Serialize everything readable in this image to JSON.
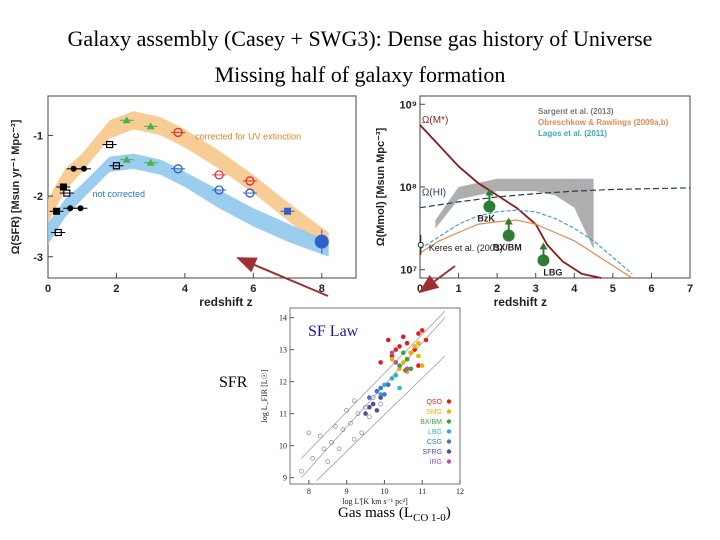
{
  "slide": {
    "title_line1": "Galaxy assembly (Casey + SWG3): Dense gas history of Universe",
    "title_line2": "Missing half of galaxy formation",
    "sf_law_label": "SF Law",
    "sfr_label": "SFR",
    "gas_mass_label": "Gas mass (L",
    "gas_mass_sub": "CO 1-0",
    "gas_mass_close": ")"
  },
  "chart_data": [
    {
      "type": "scatter",
      "xlabel": "redshift z",
      "ylabel": "Ω(SFR) [Msun yr⁻¹ Mpc⁻³]",
      "xlim": [
        0,
        9
      ],
      "ylim": [
        -3.35,
        -0.35
      ],
      "xticks": [
        "0",
        "2",
        "4",
        "6",
        "8"
      ],
      "yticks": [
        "-1",
        "-2",
        "-3"
      ],
      "annotations": [
        "corrected for UV extinction",
        "not corrected"
      ],
      "colors": {
        "corrected_band": "#f6c88a",
        "uncorrected_band": "#8fc8ec",
        "red": "#e03030",
        "green": "#4cb050",
        "blue": "#2f5fd0"
      },
      "bands": [
        {
          "name": "corrected for UV extinction",
          "x": [
            0.0,
            0.5,
            1.0,
            1.8,
            2.5,
            3.3,
            4.0,
            5.0,
            6.0,
            7.0,
            8.2
          ],
          "lower": [
            -2.45,
            -1.9,
            -1.6,
            -1.05,
            -0.9,
            -1.0,
            -1.2,
            -1.55,
            -1.95,
            -2.4,
            -2.95
          ],
          "upper": [
            -2.05,
            -1.55,
            -1.3,
            -0.75,
            -0.6,
            -0.7,
            -0.9,
            -1.25,
            -1.65,
            -2.1,
            -2.6
          ]
        },
        {
          "name": "not corrected",
          "x": [
            0.0,
            0.5,
            1.0,
            1.8,
            2.5,
            3.3,
            4.0,
            5.0,
            6.0,
            7.0,
            8.2
          ],
          "lower": [
            -2.8,
            -2.35,
            -2.05,
            -1.6,
            -1.55,
            -1.65,
            -1.85,
            -2.2,
            -2.5,
            -2.75,
            -3.0
          ],
          "upper": [
            -2.45,
            -2.05,
            -1.8,
            -1.35,
            -1.3,
            -1.4,
            -1.6,
            -1.9,
            -2.2,
            -2.45,
            -2.75
          ]
        }
      ],
      "series": [
        {
          "color": "#000000",
          "marker": "open-square",
          "x": [
            0.3,
            0.55,
            1.8,
            2.0
          ],
          "y": [
            -2.6,
            -1.95,
            -1.15,
            -1.5
          ]
        },
        {
          "color": "#000000",
          "marker": "filled-circle",
          "x": [
            0.75,
            1.05,
            0.65,
            0.95
          ],
          "y": [
            -1.55,
            -1.55,
            -2.2,
            -2.2
          ]
        },
        {
          "color": "#000000",
          "marker": "filled-square",
          "x": [
            0.25,
            0.45
          ],
          "y": [
            -2.25,
            -1.85
          ]
        },
        {
          "color": "#4cb050",
          "marker": "triangle",
          "x": [
            2.3,
            3.0,
            2.3,
            3.0
          ],
          "y": [
            -0.75,
            -0.85,
            -1.4,
            -1.45
          ]
        },
        {
          "color": "#e03030",
          "marker": "open-circle",
          "x": [
            3.8,
            5.0,
            5.9
          ],
          "y": [
            -0.95,
            -1.65,
            -1.75
          ]
        },
        {
          "color": "#2f5fd0",
          "marker": "open-circle",
          "x": [
            3.8,
            5.0,
            5.9
          ],
          "y": [
            -1.55,
            -1.9,
            -1.95
          ]
        },
        {
          "color": "#2f5fd0",
          "marker": "filled-square",
          "x": [
            7.0
          ],
          "y": [
            -2.25
          ]
        },
        {
          "color": "#2f5fd0",
          "marker": "big-filled-circle",
          "x": [
            8.0
          ],
          "y": [
            -2.75
          ]
        }
      ]
    },
    {
      "type": "line",
      "xlabel": "redshift z",
      "ylabel": "Ω(Mmol) [Msun Mpc⁻³]",
      "xlim": [
        0,
        7
      ],
      "ylim": [
        6.9,
        9.1
      ],
      "xticks": [
        "0",
        "1",
        "2",
        "3",
        "4",
        "5",
        "6",
        "7"
      ],
      "yticks": [
        "10⁹",
        "10⁸",
        "10⁷"
      ],
      "annotations": [
        "Ω(M*)",
        "Ω(HI)",
        "BzK",
        "BX/BM",
        "LBG",
        "Keres et al. (2003)"
      ],
      "legend": {
        "placement": "top-right",
        "entries": [
          "Sargent et al. (2013)",
          "Obreschkow & Rawlings (2009a,b)",
          "Lagos et al. (2011)"
        ]
      },
      "colors": {
        "stellar": "#8b1a1a",
        "hi": "#1c3f5e",
        "obreschkow": "#e08a50",
        "lagos": "#3ba7c0",
        "sargent": "#a0a0a0",
        "marker": "#2e7d32"
      },
      "sargent_band": {
        "x": [
          0.4,
          1.0,
          1.5,
          2.0,
          2.5,
          3.0,
          3.5,
          4.0,
          4.5
        ],
        "lower": [
          7.5,
          7.85,
          7.9,
          7.95,
          7.95,
          7.95,
          7.9,
          7.75,
          7.25
        ],
        "upper": [
          7.6,
          8.0,
          8.05,
          8.1,
          8.1,
          8.1,
          8.1,
          8.1,
          8.1
        ]
      },
      "series": [
        {
          "name": "Ω(M*)",
          "x": [
            0,
            0.5,
            1.0,
            1.5,
            2.0,
            2.5,
            3.0,
            3.3,
            3.7,
            4.2,
            4.7
          ],
          "y": [
            8.75,
            8.5,
            8.25,
            8.05,
            7.9,
            7.75,
            7.55,
            7.3,
            7.1,
            6.95,
            6.9
          ]
        },
        {
          "name": "Ω(HI)",
          "x": [
            0,
            1,
            2,
            3,
            4,
            5,
            6,
            7
          ],
          "y": [
            7.75,
            7.82,
            7.88,
            7.92,
            7.95,
            7.97,
            7.98,
            7.99
          ]
        },
        {
          "name": "Obreschkow & Rawlings (2009a,b)",
          "x": [
            0,
            0.5,
            1.0,
            1.5,
            2.0,
            2.5,
            3.0,
            3.5,
            4.0,
            4.5,
            5.0,
            5.5
          ],
          "y": [
            7.2,
            7.35,
            7.45,
            7.55,
            7.58,
            7.6,
            7.55,
            7.45,
            7.35,
            7.2,
            7.05,
            6.9
          ]
        },
        {
          "name": "Lagos et al. (2011)",
          "x": [
            0,
            0.5,
            1.0,
            1.5,
            2.0,
            2.5,
            3.0,
            3.5,
            4.0,
            4.5,
            5.0,
            5.5
          ],
          "y": [
            7.25,
            7.4,
            7.55,
            7.65,
            7.7,
            7.72,
            7.7,
            7.62,
            7.5,
            7.35,
            7.15,
            6.95
          ]
        }
      ],
      "points": [
        {
          "label": "BzK",
          "x": 1.8,
          "y": 7.8
        },
        {
          "label": "BX/BM",
          "x": 2.3,
          "y": 7.45
        },
        {
          "label": "LBG",
          "x": 3.2,
          "y": 7.15
        },
        {
          "label": "Keres et al. (2003)",
          "x": 0.02,
          "y": 7.3
        }
      ]
    },
    {
      "type": "scatter",
      "xlabel": "log L'[K km s⁻¹ pc²]",
      "ylabel": "log L_FIR [L☉]",
      "xlim": [
        7.5,
        12
      ],
      "ylim": [
        8.8,
        14.3
      ],
      "xticks": [
        "8",
        "9",
        "10",
        "11",
        "12"
      ],
      "yticks": [
        "9",
        "10",
        "11",
        "12",
        "13",
        "14"
      ],
      "legend": {
        "placement": "bottom-right",
        "entries": [
          "QSO",
          "SMG",
          "BX/BM",
          "LBG",
          "CSG",
          "SFRG",
          "IRG"
        ]
      },
      "colors": {
        "QSO": "#e02020",
        "SMG": "#f0b000",
        "BX/BM": "#40a040",
        "LBG": "#30b0d0",
        "CSG": "#4070d0",
        "SFRG": "#5050a0",
        "IRG": "#b050b0",
        "local": "#888888"
      },
      "series": [
        {
          "name": "QSO",
          "x": [
            10.3,
            10.6,
            10.9,
            10.2,
            10.8,
            11.0,
            10.5,
            10.7,
            9.9,
            10.4,
            11.1,
            10.1,
            10.6,
            10.9
          ],
          "y": [
            13.0,
            13.2,
            13.5,
            12.8,
            13.0,
            13.6,
            13.4,
            12.9,
            12.6,
            13.1,
            13.3,
            13.3,
            12.7,
            12.5
          ]
        },
        {
          "name": "SMG",
          "x": [
            10.5,
            10.7,
            10.9,
            10.4,
            10.8,
            11.0,
            10.6,
            10.3,
            10.2,
            10.9
          ],
          "y": [
            12.6,
            12.9,
            12.8,
            12.4,
            13.1,
            12.5,
            12.3,
            12.2,
            12.7,
            13.2
          ]
        },
        {
          "name": "BX/BM",
          "x": [
            10.4,
            10.6,
            10.5,
            10.7,
            10.3,
            10.55
          ],
          "y": [
            12.5,
            12.7,
            12.9,
            12.4,
            12.6,
            12.35
          ]
        },
        {
          "name": "LBG",
          "x": [
            10.0,
            10.2,
            10.4,
            9.9,
            10.3
          ],
          "y": [
            11.9,
            12.1,
            11.8,
            11.6,
            12.2
          ]
        },
        {
          "name": "CSG",
          "x": [
            9.6,
            9.8,
            10.0,
            9.7,
            10.1,
            9.9
          ],
          "y": [
            11.5,
            11.7,
            11.6,
            11.3,
            11.9,
            11.8
          ]
        },
        {
          "name": "SFRG",
          "x": [
            9.5,
            9.7,
            9.9,
            9.6,
            9.8
          ],
          "y": [
            11.0,
            11.3,
            11.5,
            11.2,
            11.1
          ]
        },
        {
          "name": "IRG",
          "x": [
            10.3,
            10.6,
            10.2
          ],
          "y": [
            12.6,
            12.4,
            12.9
          ]
        },
        {
          "name": "local",
          "x": [
            7.8,
            8.1,
            8.4,
            8.6,
            8.9,
            9.1,
            9.3,
            9.5,
            9.2,
            8.7,
            9.6,
            9.0,
            8.3,
            9.4,
            8.8,
            9.7,
            8.5,
            9.9,
            8.0,
            9.2
          ],
          "y": [
            9.2,
            9.6,
            9.9,
            10.1,
            10.5,
            10.7,
            11.0,
            11.2,
            10.2,
            10.6,
            10.9,
            11.1,
            10.3,
            10.4,
            9.9,
            11.5,
            9.5,
            11.3,
            10.4,
            11.4
          ]
        }
      ],
      "fit_lines": [
        {
          "x": [
            7.8,
            11.6
          ],
          "y": [
            9.0,
            14.0
          ]
        },
        {
          "x": [
            7.8,
            11.6
          ],
          "y": [
            9.6,
            14.2
          ]
        },
        {
          "x": [
            8.2,
            11.6
          ],
          "y": [
            8.9,
            12.8
          ]
        }
      ]
    }
  ]
}
